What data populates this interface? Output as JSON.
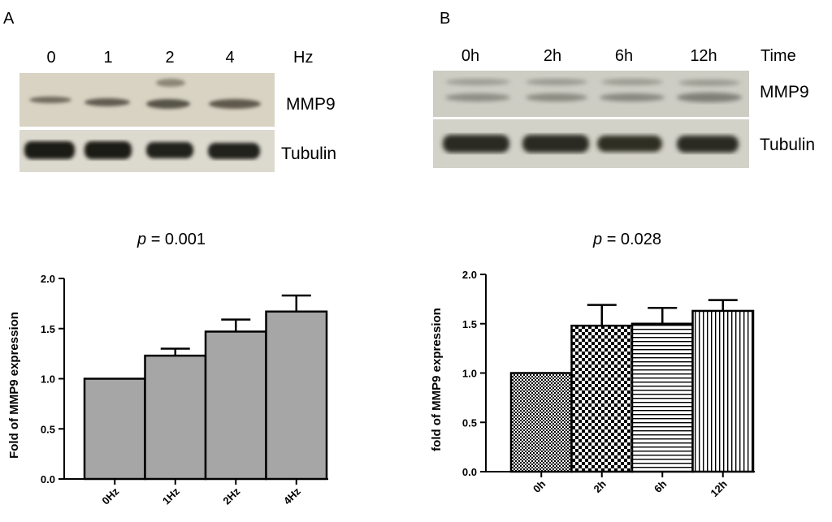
{
  "panelA": {
    "letter": "A",
    "lanes": [
      "0",
      "1",
      "2",
      "4"
    ],
    "unit": "Hz",
    "bands": [
      "MMP9",
      "Tubulin"
    ],
    "p_label": "p",
    "p_value": "= 0.001"
  },
  "panelB": {
    "letter": "B",
    "lanes": [
      "0h",
      "2h",
      "6h",
      "12h"
    ],
    "unit": "Time",
    "bands": [
      "MMP9",
      "Tubulin"
    ],
    "p_label": "p",
    "p_value": "= 0.028"
  },
  "chart_data": [
    {
      "type": "bar",
      "categories": [
        "0Hz",
        "1Hz",
        "2Hz",
        "4Hz"
      ],
      "values": [
        1.0,
        1.23,
        1.47,
        1.67
      ],
      "errors": [
        0.0,
        0.07,
        0.12,
        0.16
      ],
      "ylabel": "Fold of MMP9 expression",
      "ylim": [
        0,
        2.0
      ],
      "yticks": [
        "0.0",
        "0.5",
        "1.0",
        "1.5",
        "2.0"
      ],
      "fill": "#a6a6a6"
    },
    {
      "type": "bar",
      "categories": [
        "0h",
        "2h",
        "6h",
        "12h"
      ],
      "values": [
        1.0,
        1.48,
        1.5,
        1.63
      ],
      "errors": [
        0.0,
        0.21,
        0.16,
        0.11
      ],
      "ylabel": "fold of MMP9 expression",
      "ylim": [
        0,
        2.0
      ],
      "yticks": [
        "0.0",
        "0.5",
        "1.0",
        "1.5",
        "2.0"
      ],
      "patterns": [
        "dense-check",
        "checker",
        "horizontal-lines",
        "vertical-lines"
      ]
    }
  ]
}
